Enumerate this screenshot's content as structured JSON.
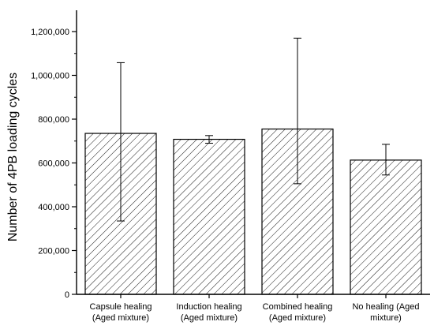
{
  "chart_data": {
    "type": "bar",
    "title": "",
    "xlabel": "",
    "ylabel": "Number of 4PB loading cycles",
    "ylim": [
      0,
      1300000
    ],
    "yticks": [
      "0",
      "200,000",
      "400,000",
      "600,000",
      "800,000",
      "1,000,000",
      "1,200,000"
    ],
    "ytick_values": [
      0,
      200000,
      400000,
      600000,
      800000,
      1000000,
      1200000
    ],
    "categories": [
      [
        "Capsule healing",
        "(Aged mixture)"
      ],
      [
        "Induction healing",
        "(Aged mixture)"
      ],
      [
        "Combined healing",
        "(Aged mixture)"
      ],
      [
        "No healing (Aged",
        "mixture)"
      ]
    ],
    "values": [
      735000,
      708000,
      755000,
      613000
    ],
    "error_low": [
      335000,
      690000,
      505000,
      545000
    ],
    "error_high": [
      1058000,
      725000,
      1170000,
      685000
    ],
    "bar_fill": "hatched",
    "bar_stroke": "#000000",
    "grid": false,
    "legend": "none"
  }
}
